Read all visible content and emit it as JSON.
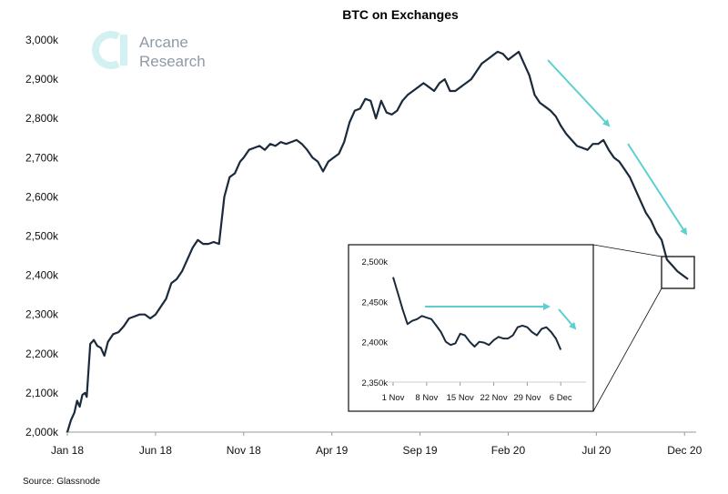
{
  "colors": {
    "line": "#1b2a3a",
    "arrow": "#5ccfd0",
    "logo": "#d3f1f1",
    "logo_text": "#8e9aa6"
  },
  "logo": {
    "line1": "Arcane",
    "line2": "Research"
  },
  "source": "Source: Glassnode",
  "chart_data": [
    {
      "type": "line",
      "title": "BTC on Exchanges",
      "xlabel": "",
      "ylabel": "",
      "ylim": [
        2000,
        3000
      ],
      "xlim": [
        0,
        35.4
      ],
      "x_ticks": [
        {
          "x": 0,
          "label": "Jan 18"
        },
        {
          "x": 5,
          "label": "Jun 18"
        },
        {
          "x": 10,
          "label": "Nov 18"
        },
        {
          "x": 15,
          "label": "Apr 19"
        },
        {
          "x": 20,
          "label": "Sep 19"
        },
        {
          "x": 25,
          "label": "Feb 20"
        },
        {
          "x": 30,
          "label": "Jul 20"
        },
        {
          "x": 35,
          "label": "Dec 20"
        }
      ],
      "y_ticks": [
        {
          "y": 3000,
          "label": "3,000k"
        },
        {
          "y": 2900,
          "label": "2,900k"
        },
        {
          "y": 2800,
          "label": "2,800k"
        },
        {
          "y": 2700,
          "label": "2,700k"
        },
        {
          "y": 2600,
          "label": "2,600k"
        },
        {
          "y": 2500,
          "label": "2,500k"
        },
        {
          "y": 2400,
          "label": "2,400k"
        },
        {
          "y": 2300,
          "label": "2,300k"
        },
        {
          "y": 2200,
          "label": "2,200k"
        },
        {
          "y": 2100,
          "label": "2,100k"
        },
        {
          "y": 2000,
          "label": "2,000k"
        }
      ],
      "series": [
        {
          "name": "BTC on Exchanges (k BTC)",
          "x": [
            0,
            0.2,
            0.4,
            0.55,
            0.7,
            0.85,
            1.0,
            1.1,
            1.3,
            1.5,
            1.7,
            1.9,
            2.1,
            2.3,
            2.6,
            2.9,
            3.2,
            3.5,
            3.8,
            4.1,
            4.4,
            4.7,
            5.0,
            5.3,
            5.6,
            5.9,
            6.2,
            6.5,
            6.8,
            7.1,
            7.4,
            7.7,
            8.0,
            8.3,
            8.6,
            8.9,
            9.2,
            9.5,
            9.8,
            10.0,
            10.3,
            10.6,
            10.9,
            11.2,
            11.5,
            11.8,
            12.1,
            12.4,
            12.7,
            13.0,
            13.3,
            13.6,
            13.9,
            14.2,
            14.5,
            14.8,
            15.1,
            15.4,
            15.7,
            16.0,
            16.3,
            16.6,
            16.9,
            17.2,
            17.5,
            17.8,
            18.1,
            18.4,
            18.7,
            19.0,
            19.3,
            19.6,
            19.9,
            20.2,
            20.5,
            20.8,
            21.1,
            21.4,
            21.7,
            22.0,
            22.3,
            22.6,
            22.9,
            23.2,
            23.5,
            23.8,
            24.1,
            24.4,
            24.7,
            25.0,
            25.3,
            25.6,
            25.9,
            26.2,
            26.5,
            26.8,
            27.1,
            27.4,
            27.7,
            28.0,
            28.3,
            28.6,
            28.9,
            29.2,
            29.5,
            29.8,
            30.1,
            30.4,
            30.7,
            31.0,
            31.3,
            31.6,
            31.9,
            32.2,
            32.5,
            32.8,
            33.1,
            33.4,
            33.7,
            34.0,
            34.3,
            34.6,
            34.9,
            35.2
          ],
          "values": [
            2000,
            2030,
            2050,
            2080,
            2065,
            2095,
            2100,
            2090,
            2225,
            2235,
            2220,
            2215,
            2195,
            2230,
            2250,
            2255,
            2270,
            2290,
            2295,
            2300,
            2300,
            2290,
            2300,
            2320,
            2340,
            2380,
            2390,
            2410,
            2440,
            2470,
            2490,
            2480,
            2480,
            2485,
            2480,
            2600,
            2650,
            2660,
            2690,
            2700,
            2720,
            2725,
            2730,
            2720,
            2735,
            2730,
            2740,
            2735,
            2740,
            2745,
            2735,
            2720,
            2700,
            2690,
            2665,
            2690,
            2700,
            2710,
            2740,
            2790,
            2820,
            2825,
            2850,
            2845,
            2800,
            2845,
            2815,
            2810,
            2820,
            2845,
            2860,
            2870,
            2880,
            2890,
            2880,
            2870,
            2890,
            2900,
            2870,
            2870,
            2880,
            2890,
            2900,
            2920,
            2940,
            2950,
            2960,
            2970,
            2965,
            2950,
            2960,
            2970,
            2940,
            2910,
            2860,
            2840,
            2830,
            2820,
            2805,
            2780,
            2760,
            2745,
            2730,
            2725,
            2720,
            2735,
            2735,
            2745,
            2720,
            2700,
            2690,
            2670,
            2650,
            2620,
            2590,
            2560,
            2540,
            2510,
            2490,
            2440,
            2425,
            2410,
            2400,
            2390
          ]
        }
      ],
      "annotations": [
        "arrow: downtrend Feb 20–Jun 20",
        "arrow: downtrend Jul 20–Dec 20",
        "box: Nov–Dec 2020 zoomed in inset"
      ]
    },
    {
      "type": "line",
      "title": "",
      "ylim": [
        2350,
        2500
      ],
      "xlim": [
        0,
        38
      ],
      "x_ticks": [
        {
          "x": 0,
          "label": "1 Nov"
        },
        {
          "x": 7,
          "label": "8 Nov"
        },
        {
          "x": 14,
          "label": "15 Nov"
        },
        {
          "x": 21,
          "label": "22 Nov"
        },
        {
          "x": 28,
          "label": "29 Nov"
        },
        {
          "x": 35,
          "label": "6 Dec"
        }
      ],
      "y_ticks": [
        {
          "y": 2500,
          "label": "2,500k"
        },
        {
          "y": 2450,
          "label": "2,450k"
        },
        {
          "y": 2400,
          "label": "2,400k"
        },
        {
          "y": 2350,
          "label": "2,350k"
        }
      ],
      "series": [
        {
          "name": "BTC on Exchanges Nov–Dec 2020 (k BTC)",
          "x": [
            0,
            1,
            2,
            3,
            4,
            5,
            6,
            7,
            8,
            9,
            10,
            11,
            12,
            13,
            14,
            15,
            16,
            17,
            18,
            19,
            20,
            21,
            22,
            23,
            24,
            25,
            26,
            27,
            28,
            29,
            30,
            31,
            32,
            33,
            34,
            35
          ],
          "values": [
            2480,
            2460,
            2440,
            2422,
            2426,
            2428,
            2432,
            2430,
            2428,
            2420,
            2412,
            2400,
            2396,
            2398,
            2410,
            2408,
            2400,
            2394,
            2400,
            2399,
            2396,
            2402,
            2406,
            2404,
            2404,
            2408,
            2418,
            2420,
            2418,
            2412,
            2408,
            2416,
            2418,
            2412,
            2404,
            2390
          ]
        }
      ],
      "annotations": [
        "arrow: sideways 1 Nov–29 Nov",
        "arrow: down early Dec"
      ]
    }
  ]
}
